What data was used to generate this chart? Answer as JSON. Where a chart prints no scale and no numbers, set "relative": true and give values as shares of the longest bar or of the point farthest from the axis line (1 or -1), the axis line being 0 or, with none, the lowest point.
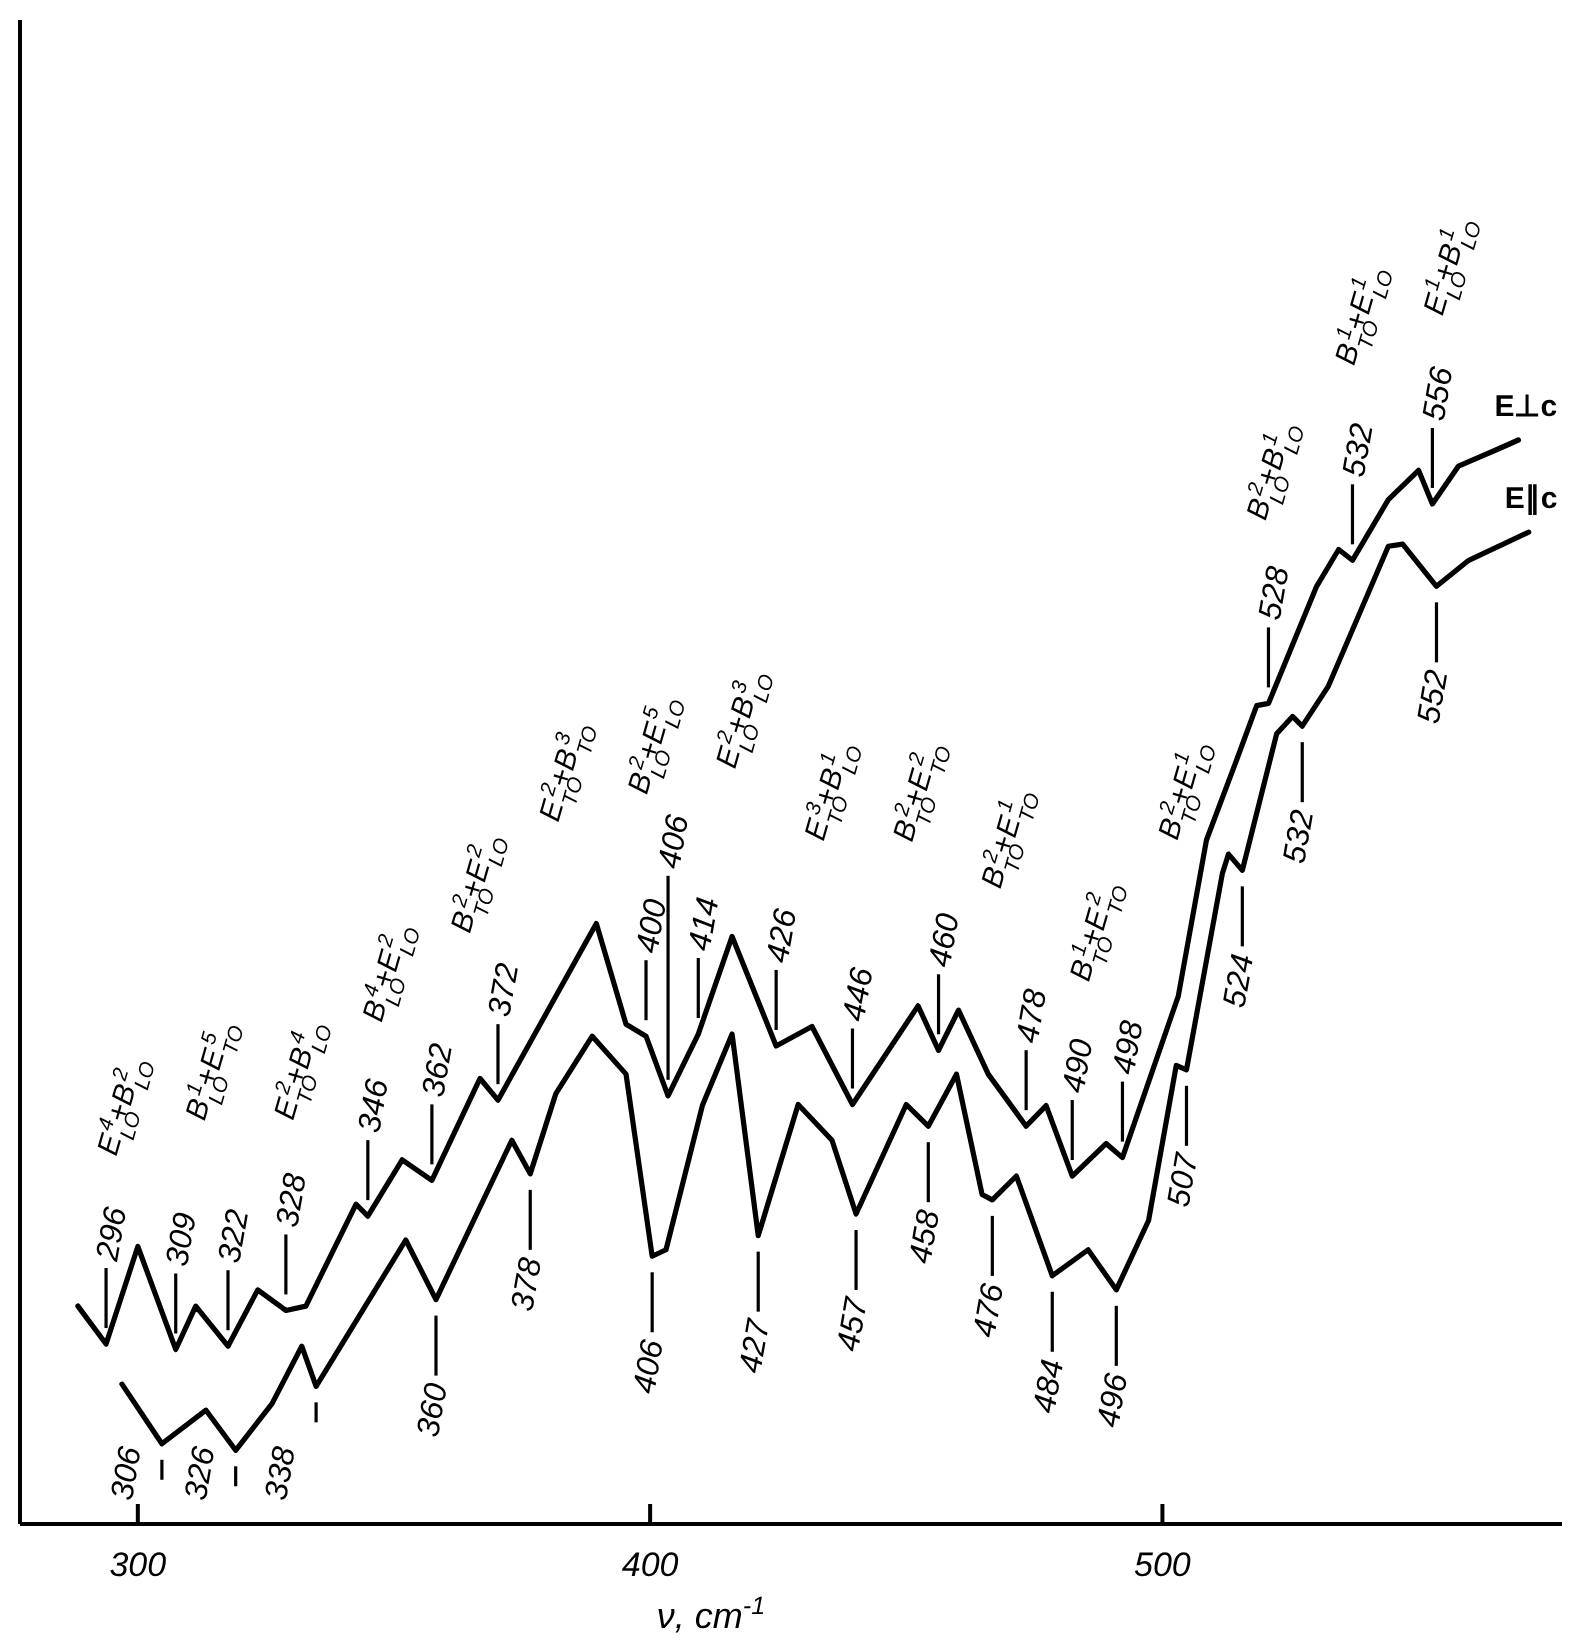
{
  "chart_data": {
    "type": "line",
    "relative": true,
    "xlabel": "ν, cm$^{-1}$",
    "xlim": [
      277,
      578
    ],
    "xticks": [
      300,
      400,
      500
    ],
    "legend": false,
    "grid": false,
    "marker": "none",
    "line_style": "solid",
    "series": [
      {
        "name": "E⊥c",
        "color": "#000000",
        "x": [
          288.3,
          293.8,
          300,
          307.4,
          311.3,
          317.6,
          323.4,
          328.9,
          332.8,
          342.6,
          344.9,
          351.6,
          357.4,
          366.8,
          370.3,
          389.5,
          395.3,
          399.2,
          403.5,
          409.4,
          416,
          424.6,
          431.6,
          439.5,
          452.3,
          456.3,
          460.2,
          466,
          473.4,
          477.3,
          482.4,
          489,
          492.2,
          503.1,
          508.6,
          514.5,
          518.4,
          520.7,
          530.1,
          534.4,
          537.1,
          544.1,
          550,
          552.7,
          557.8,
          565.2,
          569.5
        ],
        "values": [
          0.201,
          0.166,
          0.256,
          0.161,
          0.201,
          0.164,
          0.216,
          0.197,
          0.201,
          0.295,
          0.284,
          0.336,
          0.317,
          0.411,
          0.391,
          0.554,
          0.461,
          0.45,
          0.395,
          0.452,
          0.542,
          0.441,
          0.459,
          0.387,
          0.478,
          0.437,
          0.474,
          0.415,
          0.367,
          0.386,
          0.321,
          0.351,
          0.338,
          0.487,
          0.631,
          0.705,
          0.755,
          0.757,
          0.865,
          0.899,
          0.889,
          0.945,
          0.972,
          0.941,
          0.976,
          0.991,
          1.0
        ]
      },
      {
        "name": "E∥c",
        "color": "#000000",
        "x": [
          296.9,
          304.7,
          313.3,
          319.1,
          326.2,
          332,
          334.8,
          352.3,
          358.2,
          373,
          376.6,
          381.6,
          388.7,
          395.3,
          400.4,
          403.1,
          410.2,
          416,
          421.1,
          428.9,
          435.5,
          440.2,
          450,
          454.3,
          459.8,
          464.8,
          466.8,
          471.5,
          478.5,
          485.5,
          491,
          497.3,
          502.7,
          504.7,
          511.7,
          512.9,
          515.6,
          522.3,
          525.4,
          527.3,
          532.4,
          544.1,
          546.9,
          553.5,
          559.8,
          571.5
        ],
        "values": [
          0.129,
          0.074,
          0.105,
          0.068,
          0.111,
          0.164,
          0.127,
          0.262,
          0.207,
          0.354,
          0.323,
          0.397,
          0.45,
          0.415,
          0.247,
          0.253,
          0.386,
          0.452,
          0.266,
          0.387,
          0.354,
          0.286,
          0.387,
          0.367,
          0.415,
          0.304,
          0.299,
          0.321,
          0.229,
          0.253,
          0.216,
          0.28,
          0.423,
          0.419,
          0.6,
          0.618,
          0.603,
          0.729,
          0.745,
          0.736,
          0.773,
          0.902,
          0.904,
          0.865,
          0.889,
          0.915
        ]
      }
    ],
    "annotations": [
      {
        "text": "296",
        "x": 293.8,
        "y": 0.166
      },
      {
        "text": "309",
        "x": 307.4,
        "y": 0.161
      },
      {
        "text": "322",
        "x": 317.6,
        "y": 0.164
      },
      {
        "text": "328",
        "x": 328.9,
        "y": 0.197
      },
      {
        "text": "346",
        "x": 344.9,
        "y": 0.284
      },
      {
        "text": "362",
        "x": 357.4,
        "y": 0.317
      },
      {
        "text": "372",
        "x": 370.3,
        "y": 0.391
      },
      {
        "text": "400",
        "x": 399.2,
        "y": 0.45
      },
      {
        "text": "406",
        "x": 403.5,
        "y": 0.395
      },
      {
        "text": "414",
        "x": 409.4,
        "y": 0.452
      },
      {
        "text": "426",
        "x": 424.6,
        "y": 0.441
      },
      {
        "text": "446",
        "x": 439.5,
        "y": 0.387
      },
      {
        "text": "460",
        "x": 456.3,
        "y": 0.437
      },
      {
        "text": "478",
        "x": 473.4,
        "y": 0.367
      },
      {
        "text": "490",
        "x": 482.4,
        "y": 0.321
      },
      {
        "text": "498",
        "x": 492.2,
        "y": 0.338
      },
      {
        "text": "528",
        "x": 520.7,
        "y": 0.757
      },
      {
        "text": "532",
        "x": 537.1,
        "y": 0.889
      },
      {
        "text": "556",
        "x": 552.7,
        "y": 0.941
      },
      {
        "text": "306",
        "x": 304.7,
        "y": 0.074
      },
      {
        "text": "326",
        "x": 319.1,
        "y": 0.068
      },
      {
        "text": "338",
        "x": 334.8,
        "y": 0.127
      },
      {
        "text": "360",
        "x": 358.2,
        "y": 0.207
      },
      {
        "text": "378",
        "x": 376.6,
        "y": 0.323
      },
      {
        "text": "406",
        "x": 400.4,
        "y": 0.247
      },
      {
        "text": "427",
        "x": 421.1,
        "y": 0.266
      },
      {
        "text": "457",
        "x": 440.2,
        "y": 0.286
      },
      {
        "text": "458",
        "x": 454.3,
        "y": 0.367
      },
      {
        "text": "476",
        "x": 466.8,
        "y": 0.299
      },
      {
        "text": "484",
        "x": 478.5,
        "y": 0.229
      },
      {
        "text": "496",
        "x": 491,
        "y": 0.216
      },
      {
        "text": "507",
        "x": 504.7,
        "y": 0.419
      },
      {
        "text": "524",
        "x": 515.6,
        "y": 0.603
      },
      {
        "text": "532",
        "x": 527.3,
        "y": 0.736
      },
      {
        "text": "552",
        "x": 553.5,
        "y": 0.865
      },
      "E$_{LO}$$^{4}$+B$_{LO}$$^{2}$",
      "B$_{LO}$$^{1}$+E$_{TO}$$^{5}$",
      "E$_{TO}$$^{2}$+B$_{LO}$$^{4}$",
      "B$_{LO}$$^{4}$+E$_{LO}$$^{2}$",
      "B$_{TO}$$^{2}$+E$_{LO}$$^{2}$",
      "E$_{TO}$$^{2}$+B$_{TO}$$^{3}$",
      "B$_{LO}$$^{2}$+E$_{LO}$$^{5}$",
      "E$_{LO}$$^{2}$+B$_{LO}$$^{3}$",
      "E$_{TO}$$^{3}$+B$_{LO}$$^{1}$",
      "B$_{TO}$$^{2}$+E$_{TO}$$^{2}$",
      "B$_{TO}$$^{2}$+E$_{TO}$$^{1}$",
      "B$_{TO}$$^{1}$+E$_{TO}$$^{2}$",
      "B$_{TO}$$^{2}$+E$_{LO}$$^{1}$",
      "B$_{LO}$$^{2}$+B$_{LO}$$^{1}$",
      "B$_{TO}$$^{1}$+E$_{LO}$$^{1}$",
      "E$_{LO}$$^{1}$+B$_{LO}$$^{1}$"
    ]
  }
}
